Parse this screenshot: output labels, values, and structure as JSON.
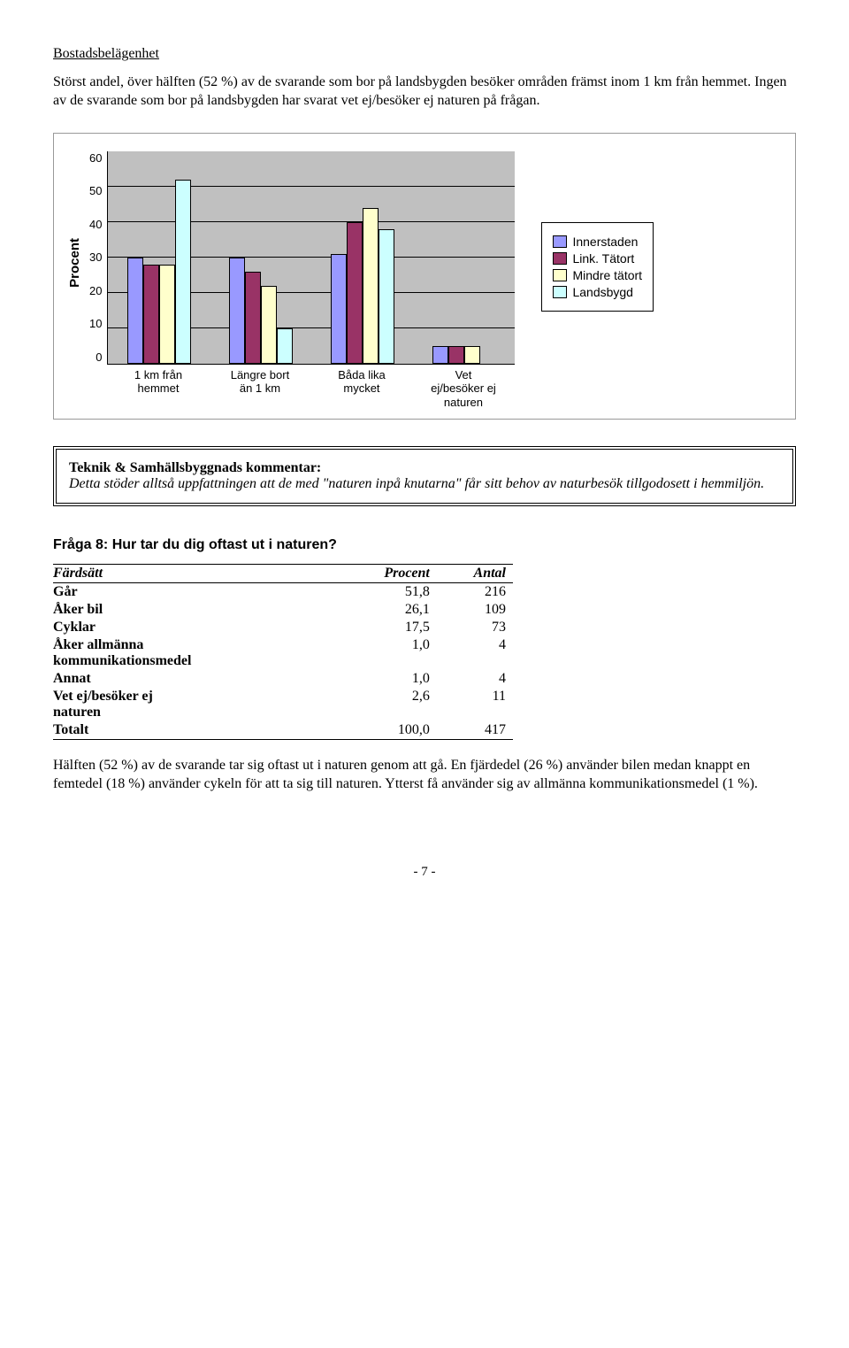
{
  "heading": "Bostadsbelägenhet",
  "intro_p1": "Störst andel, över hälften (52 %) av de svarande som bor på landsbygden besöker områden främst inom 1 km från hemmet.",
  "intro_p2": "Ingen av de svarande som bor på landsbygden har svarat vet ej/besöker ej naturen på frågan.",
  "chart": {
    "type": "bar",
    "y_label": "Procent",
    "y_max": 60,
    "y_ticks": [
      60,
      50,
      40,
      30,
      20,
      10,
      0
    ],
    "categories": [
      "1 km från hemmet",
      "Längre bort än 1 km",
      "Båda lika mycket",
      "Vet ej/besöker ej naturen"
    ],
    "series": [
      {
        "name": "Innerstaden",
        "color": "#9999ff",
        "values": [
          30,
          30,
          31,
          5
        ]
      },
      {
        "name": "Link. Tätort",
        "color": "#993366",
        "values": [
          28,
          26,
          40,
          5
        ]
      },
      {
        "name": "Mindre tätort",
        "color": "#ffffcc",
        "values": [
          28,
          22,
          44,
          5
        ]
      },
      {
        "name": "Landsbygd",
        "color": "#ccffff",
        "values": [
          52,
          10,
          38,
          0
        ]
      }
    ],
    "plot_bg": "#c0c0c0",
    "grid_color": "#000000"
  },
  "comment": {
    "title": "Teknik & Samhällsbyggnads kommentar:",
    "body": "Detta stöder alltså uppfattningen att de med \"naturen inpå knutarna\" får sitt behov av naturbesök tillgodosett i hemmiljön."
  },
  "question": "Fråga 8: Hur tar du dig oftast ut i naturen?",
  "table": {
    "columns": [
      "Färdsätt",
      "Procent",
      "Antal"
    ],
    "rows": [
      [
        "Går",
        "51,8",
        "216"
      ],
      [
        "Åker bil",
        "26,1",
        "109"
      ],
      [
        "Cyklar",
        "17,5",
        "73"
      ],
      [
        "Åker allmänna kommunikationsmedel",
        "1,0",
        "4"
      ],
      [
        "Annat",
        "1,0",
        "4"
      ],
      [
        "Vet ej/besöker ej naturen",
        "2,6",
        "11"
      ],
      [
        "Totalt",
        "100,0",
        "417"
      ]
    ]
  },
  "analysis": "Hälften (52 %) av de svarande tar sig oftast ut i naturen genom att gå. En fjärdedel (26 %) använder bilen medan knappt en femtedel (18 %) använder cykeln för att ta sig till naturen. Ytterst få använder sig av allmänna kommunikationsmedel (1 %).",
  "page_num": "- 7 -"
}
